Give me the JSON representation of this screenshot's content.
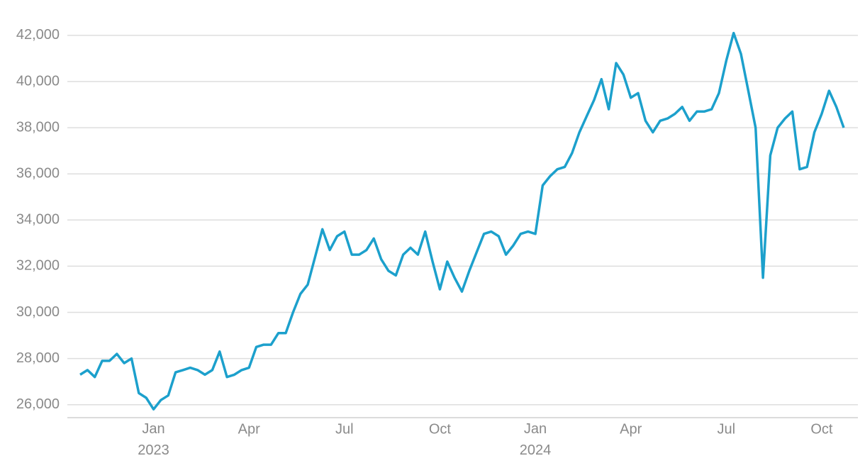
{
  "chart_data": {
    "type": "line",
    "categories": [
      null,
      null,
      null,
      null,
      null,
      null,
      null,
      null,
      null,
      null,
      "Jan 2023",
      null,
      null,
      null,
      null,
      null,
      null,
      null,
      null,
      null,
      null,
      null,
      null,
      "Apr",
      null,
      null,
      null,
      null,
      null,
      null,
      null,
      null,
      null,
      null,
      null,
      null,
      "Jul",
      null,
      null,
      null,
      null,
      null,
      null,
      null,
      null,
      null,
      null,
      null,
      null,
      "Oct",
      null,
      null,
      null,
      null,
      null,
      null,
      null,
      null,
      null,
      null,
      null,
      null,
      "Jan 2024",
      null,
      null,
      null,
      null,
      null,
      null,
      null,
      null,
      null,
      null,
      null,
      null,
      "Apr",
      null,
      null,
      null,
      null,
      null,
      null,
      null,
      null,
      null,
      null,
      null,
      null,
      "Jul",
      null,
      null,
      null,
      null,
      null,
      null,
      null,
      null,
      null,
      null,
      null,
      null,
      "Oct",
      null,
      null,
      null
    ],
    "series": [
      {
        "color": "#1ca0cc",
        "values": [
          27300,
          27500,
          27200,
          27900,
          27900,
          28200,
          27800,
          28000,
          26500,
          26300,
          25800,
          26200,
          26400,
          27400,
          27500,
          27600,
          27500,
          27300,
          27500,
          28300,
          27200,
          27300,
          27500,
          27600,
          28500,
          28600,
          28600,
          29100,
          29100,
          30000,
          30800,
          31200,
          32400,
          33600,
          32700,
          33300,
          33500,
          32500,
          32500,
          32700,
          33200,
          32300,
          31800,
          31600,
          32500,
          32800,
          32500,
          33500,
          32200,
          31000,
          32200,
          31500,
          30900,
          31800,
          32600,
          33400,
          33500,
          33300,
          32500,
          32900,
          33400,
          33500,
          33400,
          35500,
          35900,
          36200,
          36300,
          36900,
          37800,
          38500,
          39200,
          40100,
          38800,
          40800,
          40300,
          39300,
          39500,
          38300,
          37800,
          38300,
          38400,
          38600,
          38900,
          38300,
          38700,
          38700,
          38800,
          39500,
          40900,
          42100,
          41200,
          39600,
          38000,
          31500,
          36800,
          38000,
          38400,
          38700,
          36200,
          36300,
          37800,
          38600,
          39600,
          38900,
          38000
        ]
      }
    ],
    "ylim": [
      25400,
      42300
    ],
    "yticks": [
      {
        "value": 26000,
        "label": "26,000"
      },
      {
        "value": 28000,
        "label": "28,000"
      },
      {
        "value": 30000,
        "label": "30,000"
      },
      {
        "value": 32000,
        "label": "32,000"
      },
      {
        "value": 34000,
        "label": "34,000"
      },
      {
        "value": 36000,
        "label": "36,000"
      },
      {
        "value": 38000,
        "label": "38,000"
      },
      {
        "value": 40000,
        "label": "40,000"
      },
      {
        "value": 42000,
        "label": "42,000"
      }
    ],
    "grid": true
  }
}
